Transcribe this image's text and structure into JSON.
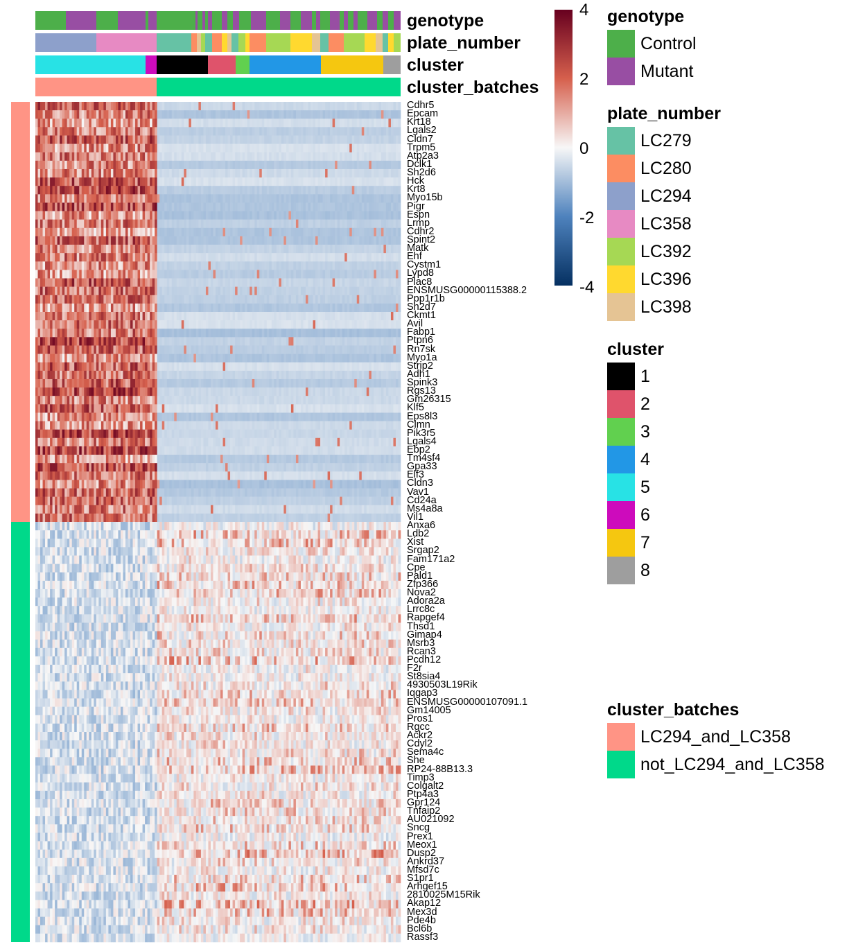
{
  "annotation_labels": {
    "genotype": "genotype",
    "plate_number": "plate_number",
    "cluster": "cluster",
    "cluster_batches": "cluster_batches"
  },
  "colors": {
    "genotype": {
      "Control": "#4DAF4A",
      "Mutant": "#984EA3"
    },
    "plate_number": {
      "LC279": "#66C2A5",
      "LC280": "#FC8D62",
      "LC294": "#8DA0CB",
      "LC358": "#E78AC3",
      "LC392": "#A6D854",
      "LC396": "#FFD92F",
      "LC398": "#E5C494"
    },
    "cluster": {
      "1": "#000000",
      "2": "#DF536B",
      "3": "#61D04F",
      "4": "#2297E6",
      "5": "#28E2E5",
      "6": "#CD0BBC",
      "7": "#F5C710",
      "8": "#9E9E9E"
    },
    "cluster_batches": {
      "LC294_and_LC358": "#FF9485",
      "not_LC294_and_LC358": "#00D98A"
    },
    "scale": {
      "low": "#053061",
      "mid_low": "#4E82BD",
      "mid": "#F7F7F7",
      "mid_high": "#D6604D",
      "high": "#67001F"
    }
  },
  "legends": [
    {
      "title": "genotype",
      "items": [
        "Control",
        "Mutant"
      ]
    },
    {
      "title": "plate_number",
      "items": [
        "LC279",
        "LC280",
        "LC294",
        "LC358",
        "LC392",
        "LC396",
        "LC398"
      ]
    },
    {
      "title": "cluster",
      "items": [
        "1",
        "2",
        "3",
        "4",
        "5",
        "6",
        "7",
        "8"
      ]
    },
    {
      "title": "cluster_batches",
      "items": [
        "LC294_and_LC358",
        "not_LC294_and_LC358"
      ]
    }
  ],
  "color_scale": {
    "ticks": [
      "4",
      "2",
      "0",
      "-2",
      "-4"
    ],
    "min": -4,
    "max": 4
  },
  "chart_data": {
    "type": "heatmap",
    "title": "",
    "value_range": [
      -4,
      4
    ],
    "column_groups": [
      {
        "cluster_batches": "LC294_and_LC358",
        "clusters": [
          "5",
          "6"
        ],
        "plates": [
          "LC294",
          "LC358"
        ],
        "approx_fraction_of_columns": 0.33
      },
      {
        "cluster_batches": "not_LC294_and_LC358",
        "clusters": [
          "1",
          "2",
          "3",
          "4",
          "7",
          "8"
        ],
        "plates": [
          "LC279",
          "LC280",
          "LC392",
          "LC396",
          "LC398"
        ],
        "approx_fraction_of_columns": 0.67
      }
    ],
    "row_groups": [
      {
        "cluster_batches": "LC294_and_LC358",
        "pattern": "high in LC294_and_LC358 columns, low elsewhere",
        "genes": [
          "Cdhr5",
          "Epcam",
          "Krt18",
          "Lgals2",
          "Cldn7",
          "Trpm5",
          "Atp2a3",
          "Dclk1",
          "Sh2d6",
          "Hck",
          "Krt8",
          "Myo15b",
          "Pigr",
          "Espn",
          "Lrmp",
          "Cdhr2",
          "Spint2",
          "Matk",
          "Ehf",
          "Cystm1",
          "Lypd8",
          "Plac8",
          "ENSMUSG00000115388.2",
          "Ppp1r1b",
          "Sh2d7",
          "Ckmt1",
          "Avil",
          "Fabp1",
          "Ptpn6",
          "Rn7sk",
          "Myo1a",
          "Strip2",
          "Adh1",
          "Spink3",
          "Rgs13",
          "Gm26315",
          "Klf5",
          "Eps8l3",
          "Clmn",
          "Pik3r5",
          "Lgals4",
          "Ebp2",
          "Tm4sf4",
          "Gpa33",
          "Elf3",
          "Cldn3",
          "Vav1",
          "Cd24a",
          "Ms4a8a",
          "Vil1"
        ]
      },
      {
        "cluster_batches": "not_LC294_and_LC358",
        "pattern": "higher in not_LC294_and_LC358 columns",
        "genes": [
          "Anxa6",
          "Ldb2",
          "Xist",
          "Srgap2",
          "Fam171a2",
          "Cpe",
          "Pald1",
          "Zfp366",
          "Nova2",
          "Adora2a",
          "Lrrc8c",
          "Rapgef4",
          "Thsd1",
          "Gimap4",
          "Msrb3",
          "Rcan3",
          "Pcdh12",
          "F2r",
          "St8sia4",
          "4930503L19Rik",
          "Iqgap3",
          "ENSMUSG00000107091.1",
          "Gm14005",
          "Pros1",
          "Rgcc",
          "Ackr2",
          "Cdyl2",
          "Sema4c",
          "She",
          "RP24-88B13.3",
          "Timp3",
          "Colgalt2",
          "Ptp4a3",
          "Gpr124",
          "Tnfaip2",
          "AU021092",
          "Sncg",
          "Prex1",
          "Meox1",
          "Dusp2",
          "Ankrd37",
          "Mfsd7c",
          "S1pr1",
          "Arhgef15",
          "2810025M15Rik",
          "Akap12",
          "Mex3d",
          "Pde4b",
          "Bcl6b",
          "Rassf3"
        ]
      }
    ]
  }
}
